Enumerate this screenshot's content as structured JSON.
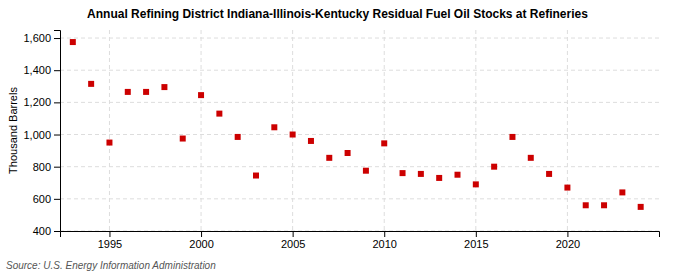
{
  "chart_data": {
    "type": "scatter",
    "title": "Annual Refining District Indiana-Illinois-Kentucky Residual Fuel Oil Stocks at Refineries",
    "ylabel": "Thousand Barrels",
    "source": "Source: U.S. Energy Information Administration",
    "x": [
      1993,
      1994,
      1995,
      1996,
      1997,
      1998,
      1999,
      2000,
      2001,
      2002,
      2003,
      2004,
      2005,
      2006,
      2007,
      2008,
      2009,
      2010,
      2011,
      2012,
      2013,
      2014,
      2015,
      2016,
      2017,
      2018,
      2019,
      2020,
      2021,
      2022,
      2023,
      2024
    ],
    "values": [
      1575,
      1315,
      950,
      1265,
      1265,
      1295,
      975,
      1245,
      1130,
      985,
      745,
      1045,
      1000,
      960,
      855,
      885,
      775,
      945,
      760,
      755,
      730,
      750,
      690,
      800,
      985,
      855,
      755,
      670,
      560,
      560,
      640,
      550
    ],
    "color": "#cc0000",
    "marker": "square",
    "grid": true,
    "xlim": [
      1992.3,
      2025.0
    ],
    "xticks": [
      1995,
      2000,
      2005,
      2010,
      2015,
      2020
    ],
    "ylim": [
      400,
      1650
    ],
    "yticks": [
      400,
      600,
      800,
      {
        "value": 1000,
        "label": "1,000"
      },
      {
        "value": 1200,
        "label": "1,200"
      },
      {
        "value": 1400,
        "label": "1,400"
      },
      {
        "value": 1600,
        "label": "1,600"
      }
    ]
  }
}
